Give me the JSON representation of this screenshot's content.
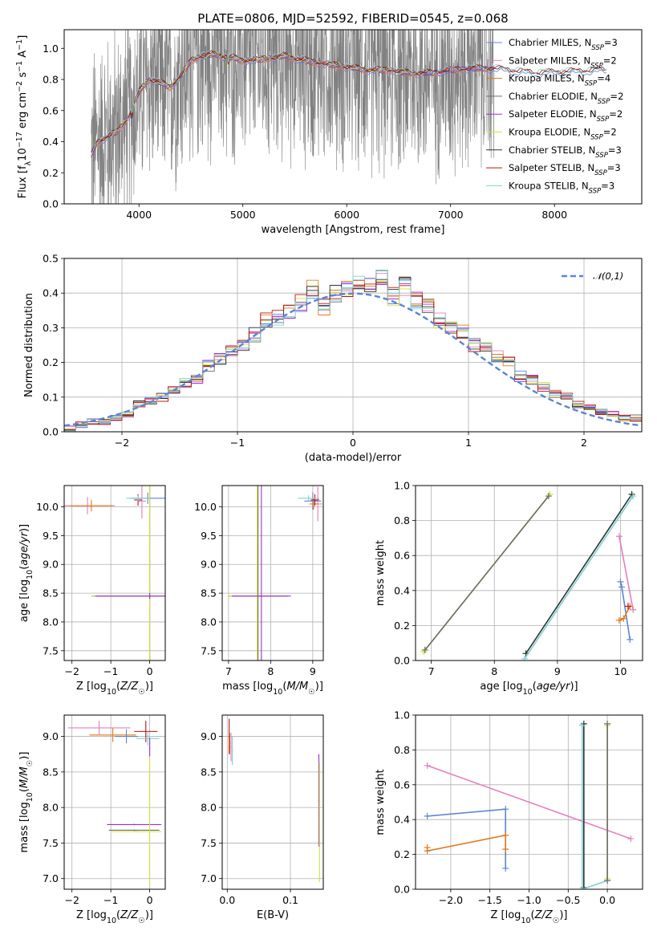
{
  "title": "PLATE=0806, MJD=52592, FIBERID=0545, z=0.068",
  "colors": {
    "Chabrier MILES": "#5b84d6",
    "Salpeter MILES": "#e27fbf",
    "Kroupa MILES": "#e07a1f",
    "Chabrier ELODIE": "#6b6b6b",
    "Salpeter ELODIE": "#9b30d0",
    "Kroupa ELODIE": "#d4e23a",
    "Chabrier STELIB": "#333333",
    "Salpeter STELIB": "#c01010",
    "Kroupa STELIB": "#7fd0d6",
    "data": "#808080",
    "normal": "#5b84d6"
  },
  "chart_data": [
    {
      "id": "spectrum",
      "type": "line",
      "xlabel": "wavelength [Angstrom, rest frame]",
      "ylabel": "Flux [f_λ10^{-17} erg cm^{-2} s^{-1} A^{-1}]",
      "xlim": [
        3280,
        8840
      ],
      "ylim": [
        0,
        1.12
      ],
      "xticks": [
        4000,
        5000,
        6000,
        7000,
        8000
      ],
      "yticks": [
        0.0,
        0.2,
        0.4,
        0.6,
        0.8,
        1.0
      ],
      "ytick_labels": [
        "0.0",
        "0.2",
        "0.4",
        "0.6",
        "0.8",
        "1.0"
      ],
      "legend": [
        {
          "name": "Chabrier MILES",
          "nssp": "3"
        },
        {
          "name": "Salpeter MILES",
          "nssp": "2"
        },
        {
          "name": "Kroupa MILES",
          "nssp": "4"
        },
        {
          "name": "Chabrier ELODIE",
          "nssp": "2"
        },
        {
          "name": "Salpeter ELODIE",
          "nssp": "2"
        },
        {
          "name": "Kroupa ELODIE",
          "nssp": "2"
        },
        {
          "name": "Chabrier STELIB",
          "nssp": "3"
        },
        {
          "name": "Salpeter STELIB",
          "nssp": "3"
        },
        {
          "name": "Kroupa STELIB",
          "nssp": "3"
        }
      ],
      "legend_nssp_prefix": "N",
      "legend_nssp_sub": "SSP",
      "legend_position": "right",
      "model_continuum": [
        [
          3540,
          0.31
        ],
        [
          3600,
          0.4
        ],
        [
          3700,
          0.43
        ],
        [
          3800,
          0.47
        ],
        [
          3900,
          0.56
        ],
        [
          4000,
          0.72
        ],
        [
          4100,
          0.8
        ],
        [
          4200,
          0.78
        ],
        [
          4300,
          0.75
        ],
        [
          4400,
          0.82
        ],
        [
          4500,
          0.92
        ],
        [
          4600,
          0.95
        ],
        [
          4700,
          0.96
        ],
        [
          4800,
          0.95
        ],
        [
          4900,
          0.94
        ],
        [
          5000,
          0.92
        ],
        [
          5200,
          0.93
        ],
        [
          5400,
          0.95
        ],
        [
          5600,
          0.92
        ],
        [
          5800,
          0.9
        ],
        [
          6000,
          0.88
        ],
        [
          6200,
          0.86
        ],
        [
          6400,
          0.86
        ],
        [
          6600,
          0.84
        ],
        [
          6800,
          0.84
        ],
        [
          7000,
          0.86
        ],
        [
          7200,
          0.87
        ],
        [
          7400,
          0.87
        ]
      ],
      "model_red_extension": [
        [
          6600,
          0.84
        ],
        [
          7000,
          0.86
        ],
        [
          7400,
          0.87
        ],
        [
          7800,
          0.84
        ],
        [
          8200,
          0.85
        ],
        [
          8500,
          0.86
        ]
      ],
      "data_range": [
        3540,
        7420
      ],
      "data_noise_amplitude": 0.5
    },
    {
      "id": "residuals",
      "type": "histogram",
      "xlabel": "(data-model)/error",
      "ylabel": "Normed distribution",
      "xlim": [
        -2.5,
        2.5
      ],
      "ylim": [
        0,
        0.5
      ],
      "xticks": [
        -2,
        -1,
        0,
        1,
        2
      ],
      "xtick_labels": [
        "−2",
        "−1",
        "0",
        "1",
        "2"
      ],
      "yticks": [
        0.0,
        0.1,
        0.2,
        0.3,
        0.4,
        0.5
      ],
      "ytick_labels": [
        "0.0",
        "0.1",
        "0.2",
        "0.3",
        "0.4",
        "0.5"
      ],
      "bin_width": 0.1,
      "reference_label": "𝒩(0,1)",
      "legend_position": "top-right",
      "representative_bins": [
        0.01,
        0.02,
        0.03,
        0.03,
        0.04,
        0.05,
        0.08,
        0.09,
        0.1,
        0.12,
        0.14,
        0.15,
        0.19,
        0.21,
        0.23,
        0.25,
        0.28,
        0.32,
        0.33,
        0.35,
        0.37,
        0.41,
        0.36,
        0.4,
        0.41,
        0.43,
        0.42,
        0.44,
        0.39,
        0.42,
        0.38,
        0.36,
        0.32,
        0.3,
        0.29,
        0.25,
        0.25,
        0.22,
        0.2,
        0.16,
        0.15,
        0.13,
        0.11,
        0.1,
        0.08,
        0.07,
        0.06,
        0.05,
        0.04,
        0.04
      ]
    },
    {
      "id": "age_vs_Z",
      "type": "scatter",
      "xlabel": "Z [log10(Z/Z☉)]",
      "ylabel": "age  [log10(age/yr)]",
      "xlim": [
        -2.2,
        0.4
      ],
      "ylim": [
        7.33,
        10.37
      ],
      "xticks": [
        -2,
        -1,
        0
      ],
      "xtick_labels": [
        "−2",
        "−1",
        "0"
      ],
      "yticks": [
        7.5,
        8.0,
        8.5,
        9.0,
        9.5,
        10.0
      ],
      "ytick_labels": [
        "7.5",
        "8.0",
        "8.5",
        "9.0",
        "9.5",
        "10.0"
      ],
      "points": [
        {
          "m": "Chabrier MILES",
          "x": -0.05,
          "y": 10.15,
          "xe": 0.45,
          "ye": 0.1
        },
        {
          "m": "Salpeter MILES",
          "x": -1.6,
          "y": 10.02,
          "xe": 0.7,
          "ye": 0.15
        },
        {
          "m": "Salpeter MILES",
          "x": -0.2,
          "y": 10.1,
          "xe": 0.1,
          "ye": 0.3
        },
        {
          "m": "Kroupa MILES",
          "x": -1.5,
          "y": 10.02,
          "xe": 0.55,
          "ye": 0.1
        },
        {
          "m": "Salpeter STELIB",
          "x": -0.3,
          "y": 10.12,
          "xe": 0.1,
          "ye": 0.1
        },
        {
          "m": "Kroupa STELIB",
          "x": -0.3,
          "y": 10.15,
          "xe": 0.3,
          "ye": 0.05
        },
        {
          "m": "Chabrier ELODIE",
          "x": 0.0,
          "y": 8.45,
          "xe": 1.5,
          "ye": 2.6
        },
        {
          "m": "Kroupa ELODIE",
          "x": 0.0,
          "y": 8.45,
          "xe": 1.5,
          "ye": 2.6
        },
        {
          "m": "Salpeter ELODIE",
          "x": 0.0,
          "y": 8.45,
          "xe": 1.4,
          "ye": 0.05
        }
      ]
    },
    {
      "id": "age_vs_mass",
      "type": "scatter",
      "xlabel": "mass [log10(M/M☉)]",
      "ylabel": "",
      "xlim": [
        6.85,
        9.25
      ],
      "ylim": [
        7.33,
        10.37
      ],
      "xticks": [
        7,
        8,
        9
      ],
      "xtick_labels": [
        "7",
        "8",
        "9"
      ],
      "yticks": [
        7.5,
        8.0,
        8.5,
        9.0,
        9.5,
        10.0
      ],
      "ytick_labels": [
        "7.5",
        "8.0",
        "8.5",
        "9.0",
        "9.5",
        "10.0"
      ],
      "points": [
        {
          "m": "Chabrier ELODIE",
          "x": 7.7,
          "y": 8.45,
          "xe": 0.7,
          "ye": 2.6
        },
        {
          "m": "Kroupa ELODIE",
          "x": 7.68,
          "y": 8.45,
          "xe": 0.7,
          "ye": 2.6
        },
        {
          "m": "Salpeter ELODIE",
          "x": 7.78,
          "y": 8.45,
          "xe": 0.7,
          "ye": 2.6
        },
        {
          "m": "Chabrier MILES",
          "x": 9.0,
          "y": 10.1,
          "xe": 0.2,
          "ye": 0.15
        },
        {
          "m": "Salpeter MILES",
          "x": 9.12,
          "y": 10.05,
          "xe": 0.1,
          "ye": 0.3
        },
        {
          "m": "Kroupa MILES",
          "x": 9.02,
          "y": 10.05,
          "xe": 0.1,
          "ye": 0.1
        },
        {
          "m": "Salpeter STELIB",
          "x": 9.05,
          "y": 10.12,
          "xe": 0.1,
          "ye": 0.1
        },
        {
          "m": "Kroupa STELIB",
          "x": 8.9,
          "y": 10.15,
          "xe": 0.25,
          "ye": 0.05
        }
      ]
    },
    {
      "id": "weight_vs_age",
      "type": "line",
      "xlabel": "age  [log10(age/yr)]",
      "ylabel": "mass weight",
      "xlim": [
        6.75,
        10.35
      ],
      "ylim": [
        0,
        1
      ],
      "xticks": [
        7,
        8,
        9,
        10
      ],
      "xtick_labels": [
        "7",
        "8",
        "9",
        "10"
      ],
      "yticks": [
        0.0,
        0.2,
        0.4,
        0.6,
        0.8,
        1.0
      ],
      "ytick_labels": [
        "0.0",
        "0.2",
        "0.4",
        "0.6",
        "0.8",
        "1.0"
      ],
      "series": [
        {
          "m": "Kroupa ELODIE",
          "points": [
            [
              6.88,
              0.05
            ],
            [
              8.88,
              0.95
            ]
          ]
        },
        {
          "m": "Chabrier ELODIE",
          "points": [
            [
              6.9,
              0.06
            ],
            [
              8.86,
              0.94
            ]
          ]
        },
        {
          "m": "Chabrier STELIB",
          "points": [
            [
              8.5,
              0.04
            ],
            [
              10.18,
              0.95
            ]
          ]
        },
        {
          "m": "Kroupa STELIB",
          "points": [
            [
              8.48,
              0.01
            ],
            [
              10.2,
              0.94
            ]
          ]
        },
        {
          "m": "Chabrier MILES",
          "points": [
            [
              10.0,
              0.45
            ],
            [
              10.02,
              0.42
            ],
            [
              10.15,
              0.12
            ]
          ]
        },
        {
          "m": "Salpeter MILES",
          "points": [
            [
              9.98,
              0.71
            ],
            [
              10.2,
              0.29
            ]
          ]
        },
        {
          "m": "Kroupa MILES",
          "points": [
            [
              9.98,
              0.23
            ],
            [
              10.05,
              0.24
            ],
            [
              10.15,
              0.31
            ]
          ]
        },
        {
          "m": "Salpeter STELIB",
          "points": [
            [
              10.12,
              0.31
            ]
          ]
        }
      ]
    },
    {
      "id": "mass_vs_Z",
      "type": "scatter",
      "xlabel": "Z [log10(Z/Z☉)]",
      "ylabel": "mass [log10(M/M☉)]",
      "xlim": [
        -2.2,
        0.4
      ],
      "ylim": [
        6.85,
        9.3
      ],
      "xticks": [
        -2,
        -1,
        0
      ],
      "xtick_labels": [
        "−2",
        "−1",
        "0"
      ],
      "yticks": [
        7.0,
        7.5,
        8.0,
        8.5,
        9.0
      ],
      "ytick_labels": [
        "7.0",
        "7.5",
        "8.0",
        "8.5",
        "9.0"
      ],
      "points": [
        {
          "m": "Salpeter MILES",
          "x": -1.3,
          "y": 9.12,
          "xe": 0.8,
          "ye": 0.1
        },
        {
          "m": "Kroupa MILES",
          "x": -0.95,
          "y": 9.02,
          "xe": 0.6,
          "ye": 0.1
        },
        {
          "m": "Chabrier MILES",
          "x": -0.6,
          "y": 9.0,
          "xe": 0.3,
          "ye": 0.1
        },
        {
          "m": "Salpeter STELIB",
          "x": -0.1,
          "y": 9.07,
          "xe": 0.3,
          "ye": 0.15
        },
        {
          "m": "Kroupa STELIB",
          "x": -0.05,
          "y": 8.97,
          "xe": 0.3,
          "ye": 0.1
        },
        {
          "m": "Salpeter ELODIE",
          "x": -0.4,
          "y": 7.76,
          "xe": 0.7,
          "ye": 0.01
        },
        {
          "m": "Chabrier ELODIE",
          "x": -0.4,
          "y": 7.68,
          "xe": 0.65,
          "ye": 0.01
        },
        {
          "m": "Kroupa ELODIE",
          "x": -0.35,
          "y": 7.66,
          "xe": 0.65,
          "ye": 0.01
        },
        {
          "m": "Kroupa ELODIE",
          "x": 0.0,
          "y": 7.8,
          "xe": 0.01,
          "ye": 0.9
        },
        {
          "m": "Salpeter ELODIE",
          "x": 0.0,
          "y": 8.85,
          "xe": 0.01,
          "ye": 0.13
        }
      ]
    },
    {
      "id": "mass_vs_ebv",
      "type": "scatter",
      "xlabel": "E(B-V)",
      "ylabel": "",
      "xlim": [
        -0.008,
        0.152
      ],
      "ylim": [
        6.85,
        9.3
      ],
      "xticks": [
        0.0,
        0.1
      ],
      "xtick_labels": [
        "0.0",
        "0.1"
      ],
      "yticks": [
        7.0,
        7.5,
        8.0,
        8.5,
        9.0
      ],
      "ytick_labels": [
        "7.0",
        "7.5",
        "8.0",
        "8.5",
        "9.0"
      ],
      "points": [
        {
          "m": "Salpeter STELIB",
          "x": 0.003,
          "y": 9.0,
          "xe": 0.001,
          "ye": 0.25
        },
        {
          "m": "Kroupa MILES",
          "x": 0.004,
          "y": 8.9,
          "xe": 0.001,
          "ye": 0.15
        },
        {
          "m": "Salpeter MILES",
          "x": 0.006,
          "y": 8.85,
          "xe": 0.001,
          "ye": 0.2
        },
        {
          "m": "Kroupa STELIB",
          "x": 0.008,
          "y": 8.8,
          "xe": 0.001,
          "ye": 0.2
        },
        {
          "m": "Salpeter ELODIE",
          "x": 0.145,
          "y": 8.1,
          "xe": 0.001,
          "ye": 0.65
        },
        {
          "m": "Kroupa ELODIE",
          "x": 0.146,
          "y": 7.8,
          "xe": 0.001,
          "ye": 0.85
        }
      ]
    },
    {
      "id": "weight_vs_Z",
      "type": "line",
      "xlabel": "Z [log10(Z/Z☉)]",
      "ylabel": "mass weight",
      "xlim": [
        -2.45,
        0.45
      ],
      "ylim": [
        0,
        1
      ],
      "xticks": [
        -2.0,
        -1.5,
        -1.0,
        -0.5,
        0.0
      ],
      "xtick_labels": [
        "−2.0",
        "−1.5",
        "−1.0",
        "−0.5",
        "0.0"
      ],
      "yticks": [
        0.0,
        0.2,
        0.4,
        0.6,
        0.8,
        1.0
      ],
      "ytick_labels": [
        "0.0",
        "0.2",
        "0.4",
        "0.6",
        "0.8",
        "1.0"
      ],
      "series": [
        {
          "m": "Salpeter MILES",
          "points": [
            [
              -2.3,
              0.71
            ],
            [
              0.3,
              0.29
            ]
          ]
        },
        {
          "m": "Chabrier MILES",
          "points": [
            [
              -2.3,
              0.42
            ],
            [
              -1.3,
              0.46
            ],
            [
              -1.3,
              0.12
            ]
          ]
        },
        {
          "m": "Kroupa MILES",
          "points": [
            [
              -2.3,
              0.24
            ],
            [
              -2.3,
              0.22
            ],
            [
              -1.3,
              0.31
            ],
            [
              -1.3,
              0.23
            ]
          ]
        },
        {
          "m": "Chabrier STELIB",
          "points": [
            [
              -0.3,
              0.95
            ],
            [
              -0.3,
              0.01
            ]
          ]
        },
        {
          "m": "Kroupa STELIB",
          "points": [
            [
              -0.32,
              0.94
            ],
            [
              -0.32,
              0.0
            ],
            [
              0.0,
              0.05
            ]
          ]
        },
        {
          "m": "Kroupa ELODIE",
          "points": [
            [
              0.0,
              0.94
            ],
            [
              0.0,
              0.06
            ]
          ]
        },
        {
          "m": "Chabrier ELODIE",
          "points": [
            [
              0.0,
              0.95
            ],
            [
              0.0,
              0.05
            ]
          ]
        }
      ]
    }
  ]
}
